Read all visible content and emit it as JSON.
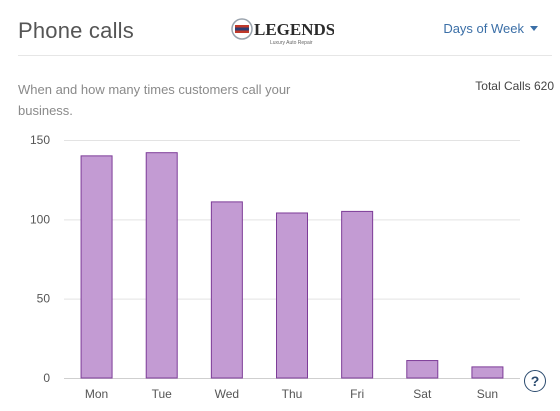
{
  "header": {
    "title": "Phone calls",
    "logo_text": "LEGENDS",
    "logo_tagline": "Luxury Auto Repair",
    "dropdown_label": "Days of Week"
  },
  "description": "When and how many times customers call your business.",
  "total_calls_label": "Total Calls 620",
  "help_label": "?",
  "colors": {
    "bar_fill": "#c39bd3",
    "bar_stroke": "#7d3c98",
    "accent_link": "#3b6fa7"
  },
  "chart_data": {
    "type": "bar",
    "categories": [
      "Mon",
      "Tue",
      "Wed",
      "Thu",
      "Fri",
      "Sat",
      "Sun"
    ],
    "values": [
      140,
      142,
      111,
      104,
      105,
      11,
      7
    ],
    "ylim": [
      0,
      150
    ],
    "yticks": [
      0,
      50,
      100,
      150
    ],
    "grid": true
  }
}
